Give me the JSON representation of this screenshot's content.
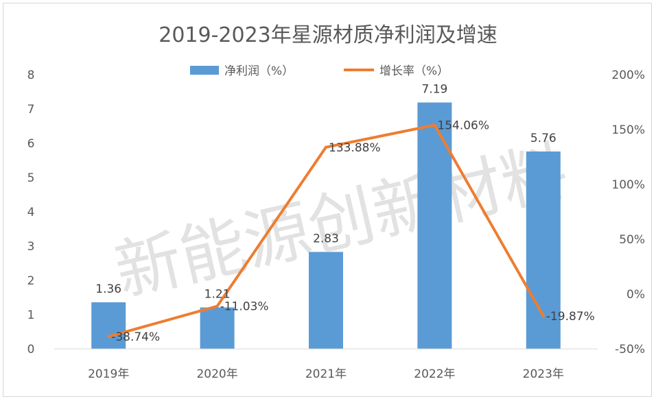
{
  "chart_data": {
    "type": "bar",
    "title": "2019-2023年星源材质净利润及增速",
    "categories": [
      "2019年",
      "2020年",
      "2021年",
      "2022年",
      "2023年"
    ],
    "series": [
      {
        "name": "净利润（%）",
        "type": "bar",
        "axis": "left",
        "values": [
          1.36,
          1.21,
          2.83,
          7.19,
          5.76
        ],
        "labels": [
          "1.36",
          "1.21",
          "2.83",
          "7.19",
          "5.76"
        ],
        "color": "#5b9bd5"
      },
      {
        "name": "增长率（%）",
        "type": "line",
        "axis": "right",
        "values": [
          -38.74,
          -11.03,
          133.88,
          154.06,
          -19.87
        ],
        "labels": [
          "-38.74%",
          "-11.03%",
          "133.88%",
          "154.06%",
          "-19.87%"
        ],
        "color": "#ed7d31"
      }
    ],
    "y_left": {
      "min": 0,
      "max": 8,
      "ticks": [
        "0",
        "1",
        "2",
        "3",
        "4",
        "5",
        "6",
        "7",
        "8"
      ]
    },
    "y_right": {
      "min": -50,
      "max": 200,
      "ticks": [
        "-50%",
        "0%",
        "50%",
        "100%",
        "150%",
        "200%"
      ]
    },
    "legend_position": "top",
    "grid": false
  },
  "watermark": "新能源创新材料"
}
